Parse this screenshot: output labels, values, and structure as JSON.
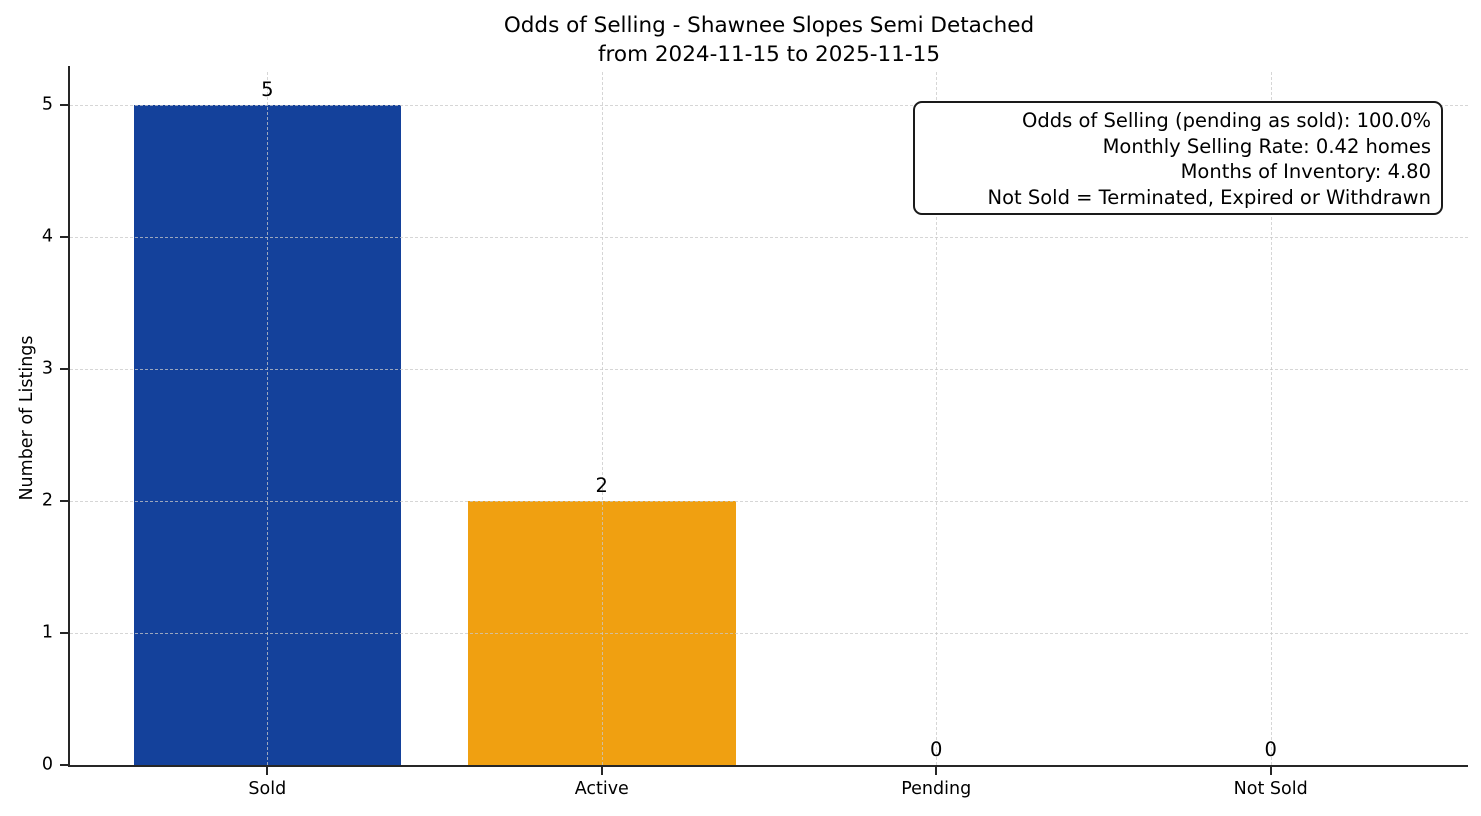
{
  "chart_data": {
    "type": "bar",
    "title_line1": "Odds of Selling - Shawnee Slopes Semi Detached",
    "title_line2": "from 2024-11-15 to 2025-11-15",
    "ylabel": "Number of Listings",
    "xlabel": "",
    "categories": [
      "Sold",
      "Active",
      "Pending",
      "Not Sold"
    ],
    "values": [
      5,
      2,
      0,
      0
    ],
    "value_labels": [
      "5",
      "2",
      "0",
      "0"
    ],
    "bar_colors": [
      "#14419b",
      "#f0a011",
      null,
      null
    ],
    "yticks": [
      0,
      1,
      2,
      3,
      4,
      5
    ],
    "ylim": [
      0,
      5.25
    ],
    "grid": "dashed-both-axes",
    "legend_position": "none",
    "axis_color": "#262626",
    "annotation_lines": [
      "Odds of Selling (pending as sold): 100.0%",
      "Monthly Selling Rate: 0.42 homes",
      "Months of Inventory: 4.80",
      "Not Sold = Terminated, Expired or Withdrawn"
    ]
  }
}
